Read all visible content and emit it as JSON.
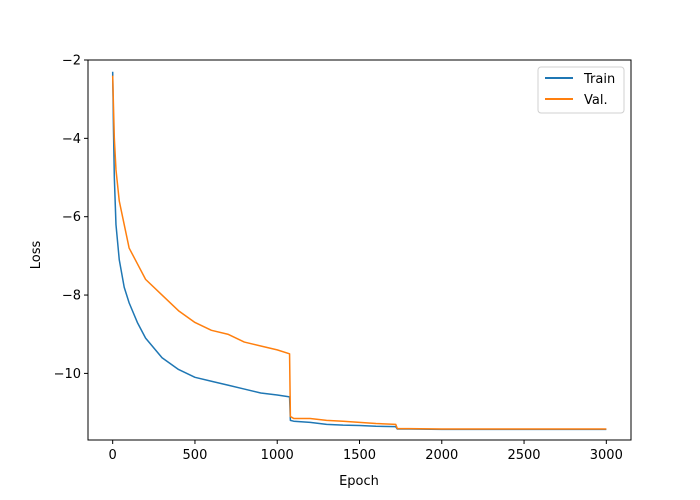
{
  "chart_data": {
    "type": "line",
    "title": "",
    "xlabel": "Epoch",
    "ylabel": "Loss",
    "xlim": [
      -150,
      3150
    ],
    "ylim": [
      -11.7,
      -2.0
    ],
    "xticks": [
      0,
      500,
      1000,
      1500,
      2000,
      2500,
      3000
    ],
    "yticks": [
      -2,
      -4,
      -6,
      -8,
      -10
    ],
    "xtick_labels": [
      "0",
      "500",
      "1000",
      "1500",
      "2000",
      "2500",
      "3000"
    ],
    "ytick_labels": [
      "−2",
      "−4",
      "−6",
      "−8",
      "−10"
    ],
    "grid": false,
    "legend_position": "top-right",
    "series": [
      {
        "name": "Train",
        "color": "#1f77b4",
        "x": [
          0,
          5,
          10,
          20,
          40,
          70,
          100,
          150,
          200,
          300,
          400,
          500,
          600,
          700,
          800,
          900,
          1000,
          1075,
          1080,
          1100,
          1200,
          1300,
          1400,
          1500,
          1600,
          1720,
          1730,
          1800,
          2000,
          2200,
          2400,
          2600,
          2800,
          3000
        ],
        "y": [
          -2.3,
          -3.8,
          -5.0,
          -6.2,
          -7.1,
          -7.8,
          -8.2,
          -8.7,
          -9.1,
          -9.6,
          -9.9,
          -10.1,
          -10.2,
          -10.3,
          -10.4,
          -10.5,
          -10.55,
          -10.6,
          -11.2,
          -11.22,
          -11.25,
          -11.3,
          -11.32,
          -11.33,
          -11.35,
          -11.36,
          -11.42,
          -11.42,
          -11.43,
          -11.43,
          -11.43,
          -11.43,
          -11.43,
          -11.43
        ]
      },
      {
        "name": "Val.",
        "color": "#ff7f0e",
        "x": [
          0,
          5,
          10,
          20,
          40,
          70,
          100,
          150,
          200,
          300,
          400,
          500,
          600,
          700,
          800,
          900,
          1000,
          1075,
          1080,
          1100,
          1200,
          1300,
          1400,
          1500,
          1600,
          1720,
          1730,
          1800,
          2000,
          2200,
          2400,
          2600,
          2800,
          3000
        ],
        "y": [
          -2.4,
          -3.2,
          -4.0,
          -4.8,
          -5.6,
          -6.2,
          -6.8,
          -7.2,
          -7.6,
          -8.0,
          -8.4,
          -8.7,
          -8.9,
          -9.0,
          -9.2,
          -9.3,
          -9.4,
          -9.5,
          -11.1,
          -11.15,
          -11.15,
          -11.2,
          -11.22,
          -11.25,
          -11.28,
          -11.3,
          -11.41,
          -11.41,
          -11.42,
          -11.42,
          -11.42,
          -11.42,
          -11.42,
          -11.42
        ]
      }
    ]
  }
}
